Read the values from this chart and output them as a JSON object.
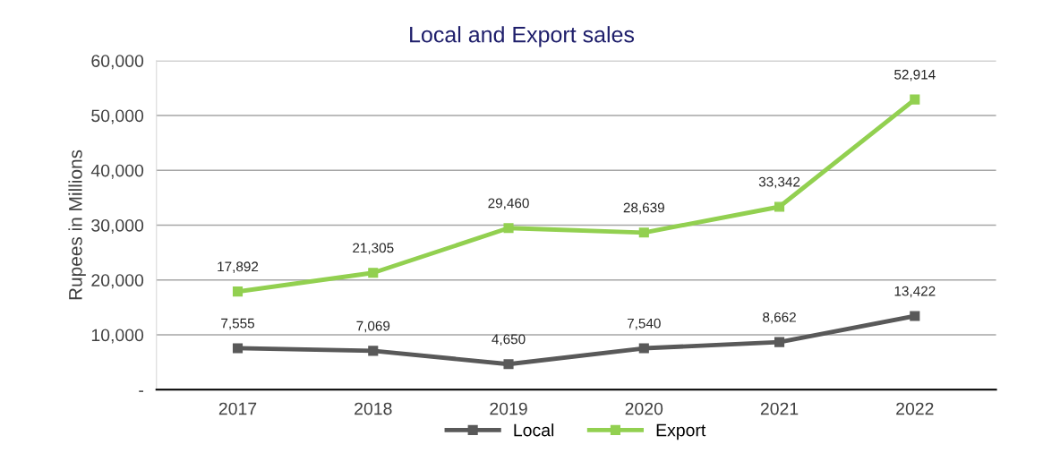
{
  "chart_data": {
    "type": "line",
    "title": "Local and Export sales",
    "ylabel": "Rupees in Millions",
    "categories": [
      "2017",
      "2018",
      "2019",
      "2020",
      "2021",
      "2022"
    ],
    "series": [
      {
        "name": "Local",
        "color": "#595959",
        "values": [
          7555,
          7069,
          4650,
          7540,
          8662,
          13422
        ],
        "value_labels": [
          "7,555",
          "7,069",
          "4,650",
          "7,540",
          "8,662",
          "13,422"
        ]
      },
      {
        "name": "Export",
        "color": "#92d050",
        "values": [
          17892,
          21305,
          29460,
          28639,
          33342,
          52914
        ],
        "value_labels": [
          "17,892",
          "21,305",
          "29,460",
          "28,639",
          "33,342",
          "52,914"
        ]
      }
    ],
    "ylim": [
      0,
      60000
    ],
    "yticks": [
      {
        "value": 0,
        "label": "-"
      },
      {
        "value": 10000,
        "label": "10,000"
      },
      {
        "value": 20000,
        "label": "20,000"
      },
      {
        "value": 30000,
        "label": "30,000"
      },
      {
        "value": 40000,
        "label": "40,000"
      },
      {
        "value": 50000,
        "label": "50,000"
      },
      {
        "value": 60000,
        "label": "60,000"
      }
    ],
    "grid": "y",
    "legend": "bottom",
    "marker": "square",
    "line_style": "solid"
  }
}
